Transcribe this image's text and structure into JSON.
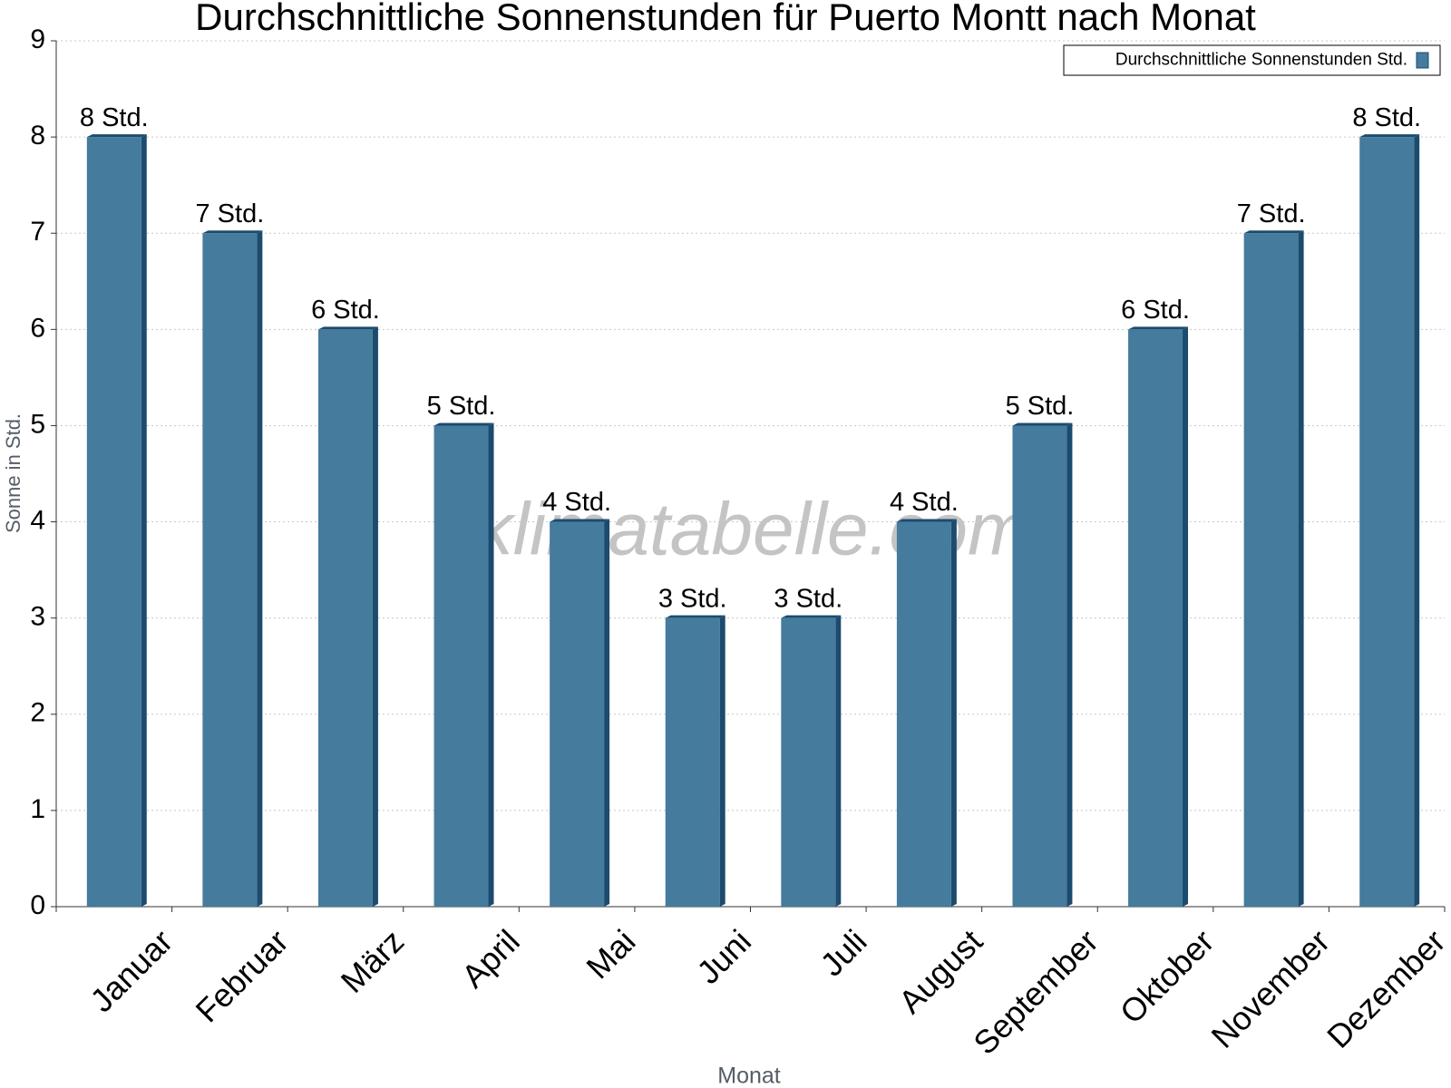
{
  "chart_data": {
    "type": "bar",
    "title": "Durchschnittliche Sonnenstunden für Puerto Montt nach Monat",
    "x_label": "Monat",
    "y_label": "Sonne in Std.",
    "watermark": "klimatabelle.com",
    "categories": [
      "Januar",
      "Februar",
      "März",
      "April",
      "Mai",
      "Juni",
      "Juli",
      "August",
      "September",
      "Oktober",
      "November",
      "Dezember"
    ],
    "series": [
      {
        "name": "Durchschnittliche Sonnenstunden Std.",
        "color": "#457b9d",
        "values": [
          8,
          7,
          6,
          5,
          4,
          3,
          3,
          4,
          5,
          6,
          7,
          8
        ],
        "value_labels": [
          "8 Std.",
          "7 Std.",
          "6 Std.",
          "5 Std.",
          "4 Std.",
          "3 Std.",
          "3 Std.",
          "4 Std.",
          "5 Std.",
          "6 Std.",
          "7 Std.",
          "8 Std."
        ]
      }
    ],
    "ylim": [
      0,
      9
    ],
    "yticks": [
      0,
      1,
      2,
      3,
      4,
      5,
      6,
      7,
      8,
      9
    ],
    "grid": true,
    "legend": "top-right"
  }
}
